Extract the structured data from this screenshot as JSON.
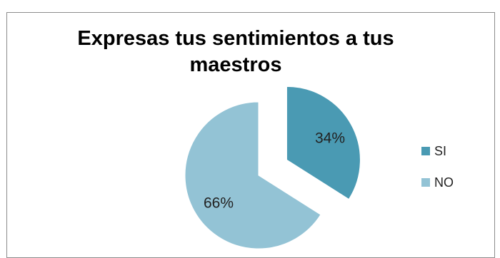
{
  "chart_data": {
    "type": "pie",
    "title": "Expresas tus sentimientos a tus maestros",
    "categories": [
      "SI",
      "NO"
    ],
    "values": [
      34,
      66
    ],
    "value_labels": [
      "34%",
      "66%"
    ],
    "colors": [
      "#4a9ab3",
      "#93c3d5"
    ],
    "legend_position": "right",
    "exploded": true
  }
}
